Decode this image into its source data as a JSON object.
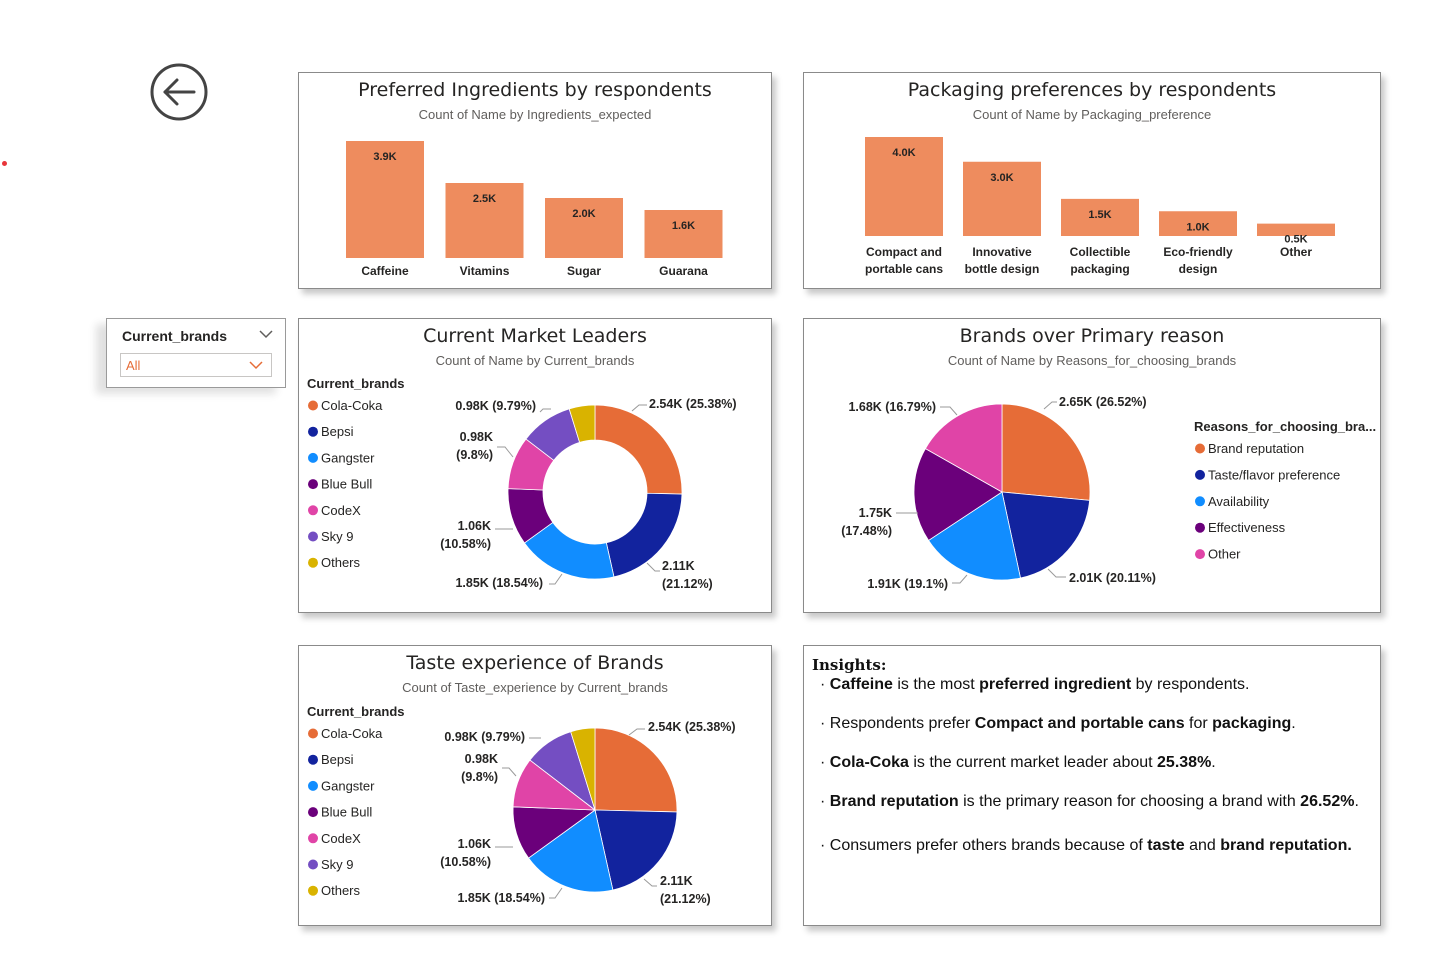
{
  "colors": {
    "bar": "#ee8c5e",
    "cola_coka": "#e66c37",
    "bepsi": "#12239e",
    "gangster": "#118dff",
    "blue_bull": "#6b007b",
    "codex": "#e044a7",
    "sky9": "#744ec2",
    "others": "#d9b300"
  },
  "slicer": {
    "title": "Current_brands",
    "value": "All"
  },
  "ingredients": {
    "title": "Preferred Ingredients by respondents",
    "subtitle": "Count of Name by Ingredients_expected",
    "chart_data": {
      "type": "bar",
      "categories": [
        "Caffeine",
        "Vitamins",
        "Sugar",
        "Guarana"
      ],
      "values": [
        3.9,
        2.5,
        2.0,
        1.6
      ],
      "labels": [
        "3.9K",
        "2.5K",
        "2.0K",
        "1.6K"
      ],
      "unit": "K",
      "ylim": [
        0,
        3.9
      ],
      "grid": false
    }
  },
  "packaging": {
    "title": "Packaging preferences by respondents",
    "subtitle": "Count of Name by Packaging_preference",
    "chart_data": {
      "type": "bar",
      "categories": [
        [
          "Compact and",
          "portable cans"
        ],
        [
          "Innovative",
          "bottle design"
        ],
        [
          "Collectible",
          "packaging"
        ],
        [
          "Eco-friendly",
          "design"
        ],
        [
          "Other"
        ]
      ],
      "values": [
        4.0,
        3.0,
        1.5,
        1.0,
        0.5
      ],
      "labels": [
        "4.0K",
        "3.0K",
        "1.5K",
        "1.0K",
        "0.5K"
      ],
      "unit": "K",
      "ylim": [
        0,
        4.0
      ],
      "grid": false
    }
  },
  "leaders": {
    "title": "Current Market Leaders",
    "subtitle": "Count of Name by Current_brands",
    "legend_title": "Current_brands",
    "chart_data": {
      "type": "pie",
      "donut": true,
      "legend_placement": "left",
      "series": [
        {
          "name": "Cola-Coka",
          "value": 2.54,
          "pct": 25.38,
          "label": "2.54K (25.38%)"
        },
        {
          "name": "Bepsi",
          "value": 2.11,
          "pct": 21.12,
          "label": "2.11K (21.12%)"
        },
        {
          "name": "Gangster",
          "value": 1.85,
          "pct": 18.54,
          "label": "1.85K (18.54%)"
        },
        {
          "name": "Blue Bull",
          "value": 1.06,
          "pct": 10.58,
          "label": "1.06K (10.58%)"
        },
        {
          "name": "CodeX",
          "value": 0.98,
          "pct": 9.8,
          "label": "0.98K (9.8%)"
        },
        {
          "name": "Sky 9",
          "value": 0.98,
          "pct": 9.79,
          "label": "0.98K (9.79%)"
        },
        {
          "name": "Others",
          "value": 0.48,
          "pct": 4.79,
          "label": ""
        }
      ]
    }
  },
  "reasons": {
    "title": "Brands over Primary reason",
    "subtitle": "Count of Name by Reasons_for_choosing_brands",
    "legend_title": "Reasons_for_choosing_bra...",
    "chart_data": {
      "type": "pie",
      "donut": false,
      "legend_placement": "right",
      "series": [
        {
          "name": "Brand reputation",
          "value": 2.65,
          "pct": 26.52,
          "label": "2.65K (26.52%)"
        },
        {
          "name": "Taste/flavor preference",
          "value": 2.01,
          "pct": 20.11,
          "label": "2.01K (20.11%)"
        },
        {
          "name": "Availability",
          "value": 1.91,
          "pct": 19.1,
          "label": "1.91K (19.1%)"
        },
        {
          "name": "Effectiveness",
          "value": 1.75,
          "pct": 17.48,
          "label": "1.75K (17.48%)"
        },
        {
          "name": "Other",
          "value": 1.68,
          "pct": 16.79,
          "label": "1.68K (16.79%)"
        }
      ]
    }
  },
  "taste": {
    "title": "Taste experience of Brands",
    "subtitle": "Count of Taste_experience by Current_brands",
    "legend_title": "Current_brands",
    "chart_data": {
      "type": "pie",
      "donut": false,
      "legend_placement": "left",
      "series": [
        {
          "name": "Cola-Coka",
          "value": 2.54,
          "pct": 25.38,
          "label": "2.54K (25.38%)"
        },
        {
          "name": "Bepsi",
          "value": 2.11,
          "pct": 21.12,
          "label": "2.11K (21.12%)"
        },
        {
          "name": "Gangster",
          "value": 1.85,
          "pct": 18.54,
          "label": "1.85K (18.54%)"
        },
        {
          "name": "Blue Bull",
          "value": 1.06,
          "pct": 10.58,
          "label": "1.06K (10.58%)"
        },
        {
          "name": "CodeX",
          "value": 0.98,
          "pct": 9.8,
          "label": "0.98K (9.8%)"
        },
        {
          "name": "Sky 9",
          "value": 0.98,
          "pct": 9.79,
          "label": "0.98K (9.79%)"
        },
        {
          "name": "Others",
          "value": 0.48,
          "pct": 4.79,
          "label": ""
        }
      ]
    }
  },
  "insights": {
    "title": "Insights:",
    "items": [
      [
        {
          "b": true,
          "t": "Caffeine"
        },
        {
          "b": false,
          "t": " is the most "
        },
        {
          "b": true,
          "t": "preferred ingredient"
        },
        {
          "b": false,
          "t": " by respondents."
        }
      ],
      [
        {
          "b": false,
          "t": "Respondents prefer "
        },
        {
          "b": true,
          "t": "Compact and portable cans"
        },
        {
          "b": false,
          "t": " for "
        },
        {
          "b": true,
          "t": "packaging"
        },
        {
          "b": false,
          "t": "."
        }
      ],
      [
        {
          "b": true,
          "t": "Cola-Coka"
        },
        {
          "b": false,
          "t": " is the current market leader about  "
        },
        {
          "b": true,
          "t": "25.38%"
        },
        {
          "b": false,
          "t": "."
        }
      ],
      [
        {
          "b": true,
          "t": "Brand reputation"
        },
        {
          "b": false,
          "t": " is the primary reason for choosing a brand with "
        },
        {
          "b": true,
          "t": "26.52%"
        },
        {
          "b": false,
          "t": "."
        }
      ],
      [
        {
          "b": false,
          "t": "Consumers prefer others brands because of "
        },
        {
          "b": true,
          "t": "taste"
        },
        {
          "b": false,
          "t": " and "
        },
        {
          "b": true,
          "t": "brand reputation."
        }
      ]
    ]
  }
}
